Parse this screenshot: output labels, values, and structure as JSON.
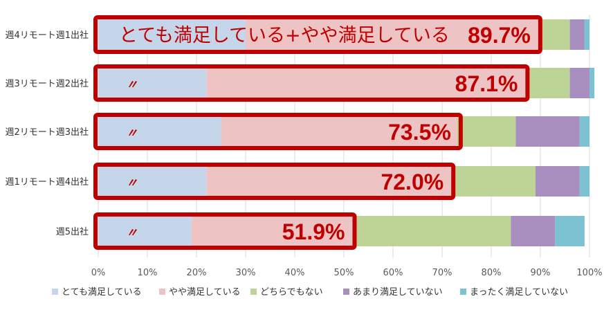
{
  "chart_data": {
    "type": "bar",
    "orientation": "horizontal",
    "stacked": "percent",
    "categories": [
      "週4リモート週1出社",
      "週3リモート週2出社",
      "週2リモート週3出社",
      "週1リモート週4出社",
      "週5出社"
    ],
    "series": [
      {
        "name": "とても満足している",
        "color": "#c5d6ea",
        "values": [
          30,
          22,
          25,
          22,
          19
        ]
      },
      {
        "name": "やや満足している",
        "color": "#edc3c3",
        "values": [
          60,
          65,
          48,
          50,
          33
        ]
      },
      {
        "name": "どちらでもない",
        "color": "#bed497",
        "values": [
          6,
          9,
          12,
          17,
          32
        ]
      },
      {
        "name": "あまり満足していない",
        "color": "#a98fc0",
        "values": [
          3,
          4,
          13,
          9,
          9
        ]
      },
      {
        "name": "まったく満足していない",
        "color": "#7cc2d2",
        "values": [
          1,
          1,
          2,
          2,
          6
        ]
      }
    ],
    "x_ticks": [
      "0%",
      "10%",
      "20%",
      "30%",
      "40%",
      "50%",
      "60%",
      "70%",
      "80%",
      "90%",
      "100%"
    ],
    "xlim": [
      0,
      100
    ],
    "grid": true,
    "legend_position": "bottom",
    "highlights": [
      {
        "label": "とても満足している+やや満足している",
        "value_text": "89.7%",
        "value": 89.7
      },
      {
        "label": "〃",
        "value_text": "87.1%",
        "value": 87.1
      },
      {
        "label": "〃",
        "value_text": "73.5%",
        "value": 73.5
      },
      {
        "label": "〃",
        "value_text": "72.0%",
        "value": 72.0
      },
      {
        "label": "〃",
        "value_text": "51.9%",
        "value": 51.9
      }
    ],
    "highlight_color": "#c00000"
  }
}
